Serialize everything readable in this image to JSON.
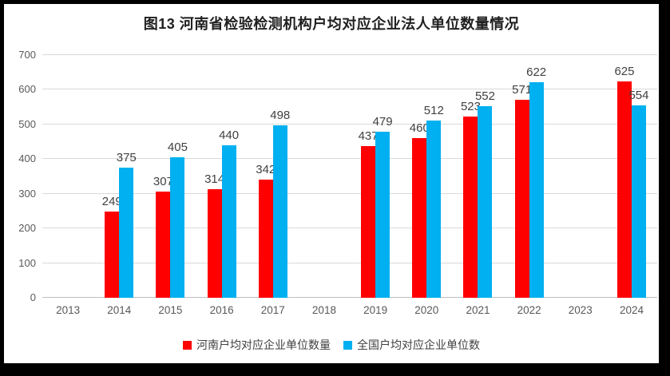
{
  "chart_data": {
    "type": "bar",
    "title": "图13 河南省检验检测机构户均对应企业法人单位数量情况",
    "categories": [
      "2013",
      "2014",
      "2015",
      "2016",
      "2017",
      "2018",
      "2019",
      "2020",
      "2021",
      "2022",
      "2023",
      "2024"
    ],
    "series": [
      {
        "name": "河南户均对应企业单位数量",
        "color": "#ff0000",
        "values": [
          null,
          249,
          307,
          314,
          342,
          null,
          437,
          460,
          523,
          571,
          null,
          625
        ]
      },
      {
        "name": "全国户均对应企业单位数",
        "color": "#00b0f0",
        "values": [
          null,
          375,
          405,
          440,
          498,
          null,
          479,
          512,
          552,
          622,
          null,
          554
        ]
      }
    ],
    "xlabel": "",
    "ylabel": "",
    "ylim": [
      0,
      700
    ],
    "yticks": [
      0,
      100,
      200,
      300,
      400,
      500,
      600,
      700
    ],
    "grid": true,
    "legend_position": "bottom",
    "colors": {
      "gridline": "#d9d9d9",
      "axis_line": "#bfbfbf",
      "axis_label": "#595959",
      "data_label": "#404040",
      "title": "#1f1f1f",
      "frame_border": "#000000",
      "background": "#ffffff"
    }
  }
}
